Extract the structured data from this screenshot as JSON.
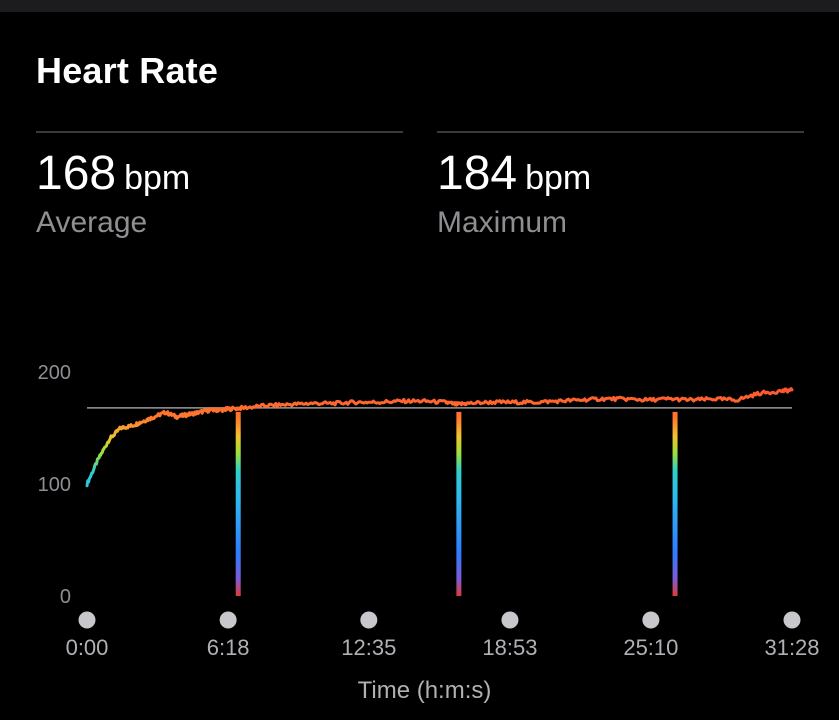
{
  "header": {
    "title": "Heart Rate"
  },
  "stats": {
    "average": {
      "value": "168",
      "unit": "bpm",
      "label": "Average"
    },
    "maximum": {
      "value": "184",
      "unit": "bpm",
      "label": "Maximum"
    }
  },
  "chart_data": {
    "type": "line",
    "title": "",
    "xlabel": "Time (h:m:s)",
    "ylabel": "",
    "ylim": [
      0,
      200
    ],
    "y_ticks": [
      "200",
      "100",
      "0"
    ],
    "y_tick_values": [
      200,
      100,
      0
    ],
    "x_ticks": [
      "0:00",
      "6:18",
      "12:35",
      "18:53",
      "25:10",
      "31:28"
    ],
    "x_tick_minutes": [
      0,
      6.3,
      12.58,
      18.88,
      25.17,
      31.47
    ],
    "average_line": 168,
    "grid": false,
    "color_scale": {
      "low": "#2f7cff",
      "mid_low": "#2fd0c8",
      "mid": "#9be03a",
      "mid_high": "#f2c230",
      "high": "#ff4a2e"
    },
    "series": [
      {
        "x_minutes": [
          0,
          0.5,
          1,
          1.5,
          2,
          2.5,
          3,
          3.5,
          4,
          4.5,
          5,
          5.5,
          6,
          6.3,
          7,
          8,
          9,
          10,
          11,
          12,
          13,
          14,
          15,
          16,
          16.5,
          17,
          18,
          19,
          20,
          21,
          22,
          23,
          24,
          25,
          26,
          27,
          28,
          29,
          30,
          31,
          31.47
        ],
        "values": [
          100,
          122,
          140,
          150,
          152,
          156,
          160,
          164,
          160,
          162,
          164,
          166,
          166,
          167,
          168,
          170,
          171,
          172,
          172,
          173,
          173,
          174,
          174,
          173,
          171,
          172,
          173,
          173,
          173,
          174,
          175,
          176,
          176,
          175,
          176,
          175,
          176,
          175,
          181,
          183,
          184
        ]
      }
    ],
    "pauses_minutes": [
      6.75,
      16.6,
      26.25
    ]
  }
}
